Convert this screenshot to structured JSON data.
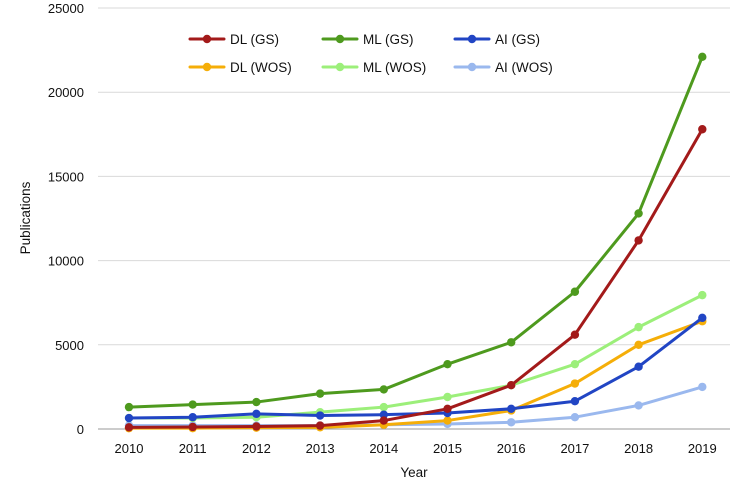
{
  "chart_data": {
    "type": "line",
    "xlabel": "Year",
    "ylabel": "Publications",
    "x": [
      2010,
      2011,
      2012,
      2013,
      2014,
      2015,
      2016,
      2017,
      2018,
      2019
    ],
    "ylim": [
      0,
      25000
    ],
    "yticks": [
      0,
      5000,
      10000,
      15000,
      20000,
      25000
    ],
    "grid": "horizontal",
    "legend_position": "top",
    "series": [
      {
        "name": "DL (GS)",
        "color": "#a31a1a",
        "values": [
          100,
          120,
          150,
          200,
          500,
          1200,
          2600,
          5600,
          11200,
          17800
        ]
      },
      {
        "name": "ML (GS)",
        "color": "#4e9a1e",
        "values": [
          1300,
          1450,
          1600,
          2100,
          2350,
          3850,
          5150,
          8150,
          12800,
          22100
        ]
      },
      {
        "name": "AI (GS)",
        "color": "#2145c4",
        "values": [
          650,
          700,
          900,
          800,
          850,
          950,
          1200,
          1650,
          3700,
          6600
        ]
      },
      {
        "name": "DL (WOS)",
        "color": "#f5ae08",
        "values": [
          50,
          50,
          80,
          100,
          250,
          500,
          1100,
          2700,
          5000,
          6400
        ]
      },
      {
        "name": "ML (WOS)",
        "color": "#9cef7a",
        "values": [
          650,
          650,
          700,
          1000,
          1300,
          1900,
          2600,
          3850,
          6050,
          7950
        ]
      },
      {
        "name": "AI (WOS)",
        "color": "#9ab8ee",
        "values": [
          200,
          200,
          200,
          200,
          250,
          300,
          400,
          700,
          1400,
          2500
        ]
      }
    ]
  }
}
